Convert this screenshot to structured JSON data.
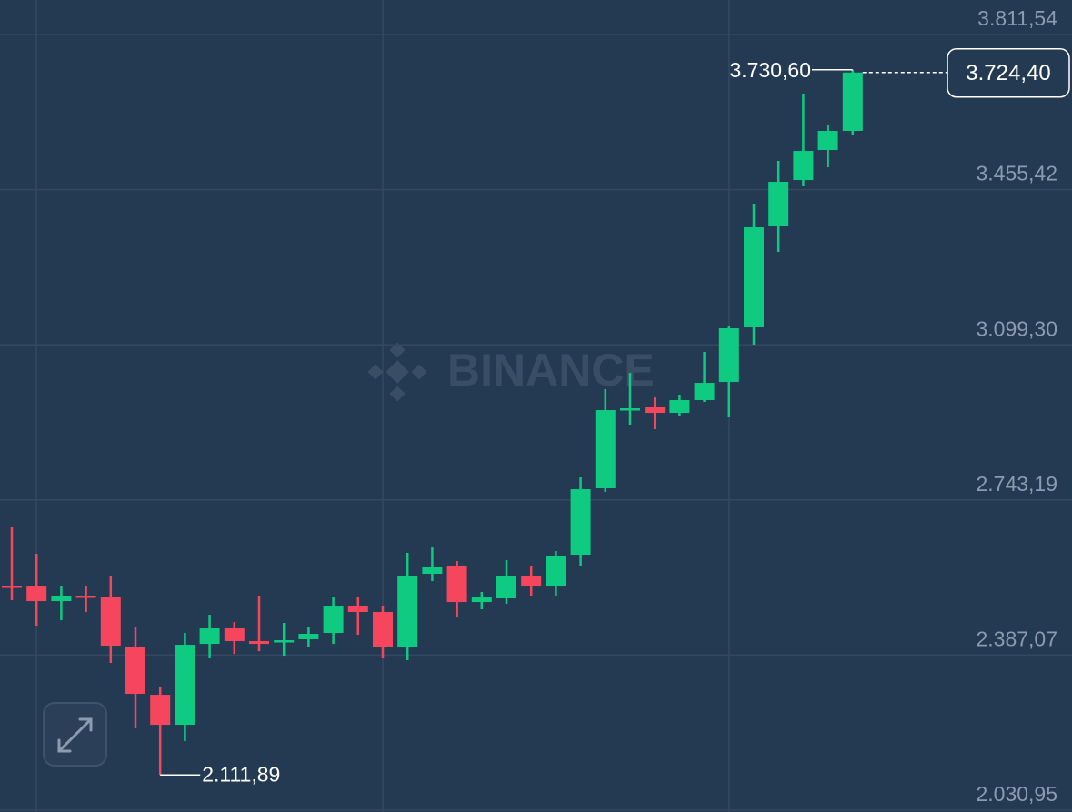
{
  "chart_data": {
    "type": "candlestick",
    "watermark": "BINANCE",
    "up_color": "#0ecb81",
    "down_color": "#f6465d",
    "grid": true,
    "ylim": [
      2026.8,
      3890.9
    ],
    "yticks": [
      {
        "value": 3811.54,
        "label": "3.811,54"
      },
      {
        "value": 3455.42,
        "label": "3.455,42"
      },
      {
        "value": 3099.3,
        "label": "3.099,30"
      },
      {
        "value": 2743.19,
        "label": "2.743,19"
      },
      {
        "value": 2387.07,
        "label": "2.387,07"
      },
      {
        "value": 2030.95,
        "label": "2.030,95"
      }
    ],
    "open": [
      2546.5,
      2544.4,
      2511.0,
      2523.6,
      2519.4,
      2406.7,
      2296.0,
      2227.1,
      2412.9,
      2448.4,
      2419.2,
      2417.1,
      2423.4,
      2438.0,
      2500.6,
      2486.0,
      2404.6,
      2573.7,
      2590.4,
      2508.9,
      2517.3,
      2569.5,
      2544.4,
      2617.5,
      2769.9,
      2949.4,
      2955.7,
      2943.1,
      2972.4,
      3014.1,
      3139.4,
      3371.1,
      3477.5,
      3546.4,
      3590.3
    ],
    "high": [
      2680.1,
      2619.6,
      2546.5,
      2546.5,
      2569.5,
      2450.5,
      2314.8,
      2438.0,
      2479.7,
      2463.0,
      2521.5,
      2460.9,
      2450.5,
      2519.4,
      2519.4,
      2500.6,
      2621.7,
      2634.2,
      2602.9,
      2531.9,
      2605.0,
      2592.4,
      2625.8,
      2794.9,
      2997.4,
      3035.0,
      2978.6,
      2984.9,
      3083.0,
      3143.5,
      3423.3,
      3521.4,
      3675.9,
      3604.9,
      3730.6
    ],
    "low": [
      2513.1,
      2454.7,
      2467.2,
      2486.0,
      2369.1,
      2218.8,
      2111.89,
      2189.6,
      2379.5,
      2390.0,
      2396.2,
      2385.8,
      2406.7,
      2412.9,
      2433.8,
      2379.5,
      2375.3,
      2557.0,
      2475.5,
      2492.2,
      2504.8,
      2521.5,
      2523.6,
      2590.4,
      2761.5,
      2916.0,
      2905.6,
      2936.9,
      2968.2,
      2932.7,
      3099.7,
      3312.6,
      3462.9,
      3506.8,
      3579.8
    ],
    "close": [
      2542.3,
      2511.0,
      2523.6,
      2519.4,
      2408.7,
      2298.1,
      2227.1,
      2410.8,
      2448.4,
      2419.2,
      2412.9,
      2421.3,
      2435.9,
      2498.5,
      2486.0,
      2404.6,
      2569.5,
      2588.3,
      2508.9,
      2519.4,
      2569.5,
      2544.4,
      2615.4,
      2767.8,
      2949.4,
      2953.6,
      2943.1,
      2972.4,
      3012.0,
      3137.3,
      3369.0,
      3473.4,
      3544.3,
      3590.3,
      3724.4
    ],
    "max_label": {
      "value": 3730.6,
      "label": "3.730,60"
    },
    "min_label": {
      "value": 2111.89,
      "label": "2.111,89"
    },
    "last_price": {
      "value": 3724.4,
      "label": "3.724,40"
    }
  }
}
